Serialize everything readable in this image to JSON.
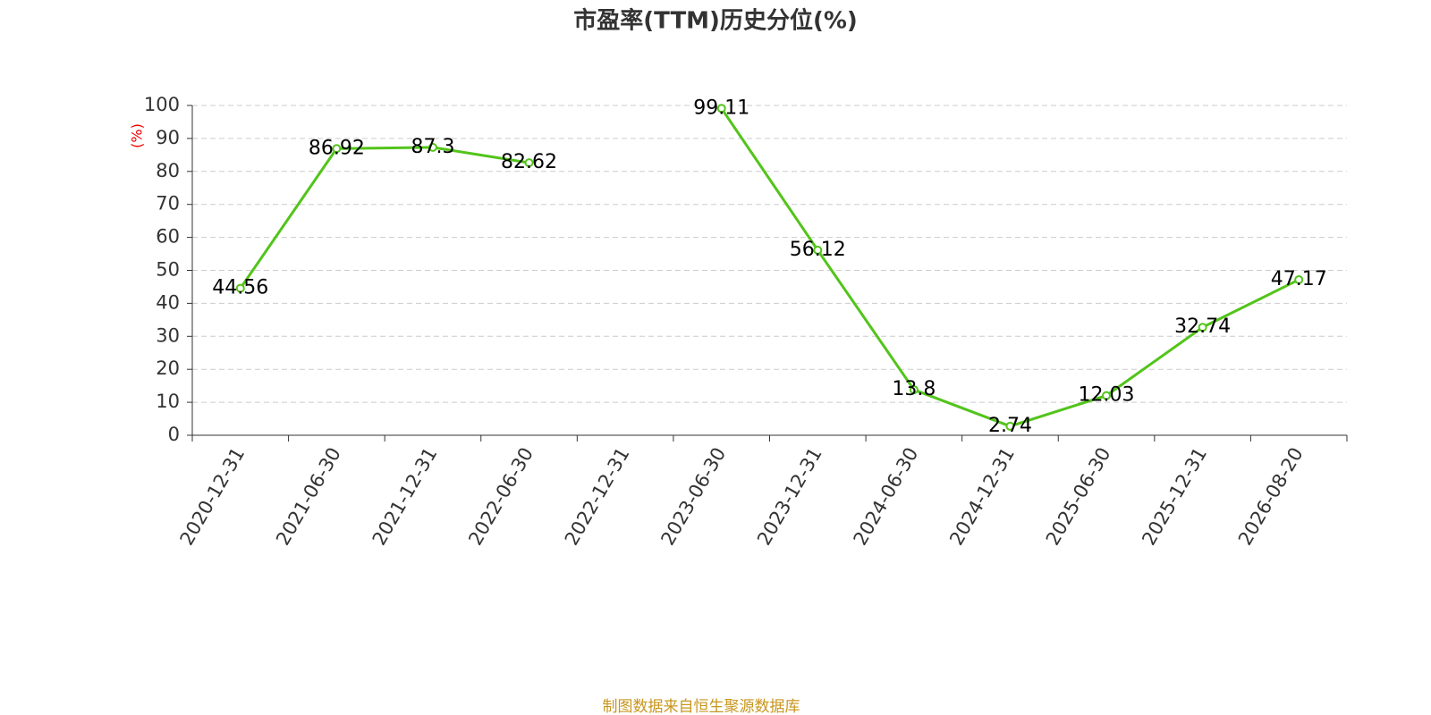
{
  "chart_data": {
    "type": "line",
    "title": "市盈率(TTM)历史分位(%)",
    "y_label": "(%)",
    "source": "制图数据来自恒生聚源数据库",
    "categories": [
      "2020-12-31",
      "2021-06-30",
      "2021-12-31",
      "2022-06-30",
      "2022-12-31",
      "2023-06-30",
      "2023-12-31",
      "2024-06-30",
      "2024-12-31",
      "2025-06-30",
      "2025-12-31",
      "2026-08-20"
    ],
    "series": [
      {
        "name": "市盈率(TTM)历史分位",
        "color": "#52c41a",
        "values": [
          44.56,
          86.92,
          87.3,
          82.62,
          null,
          99.11,
          56.12,
          13.8,
          2.74,
          12.03,
          32.74,
          47.17
        ]
      }
    ],
    "ylim": [
      0,
      100
    ],
    "yticks": [
      0,
      10,
      20,
      30,
      40,
      50,
      60,
      70,
      80,
      90,
      100
    ],
    "grid": true
  }
}
